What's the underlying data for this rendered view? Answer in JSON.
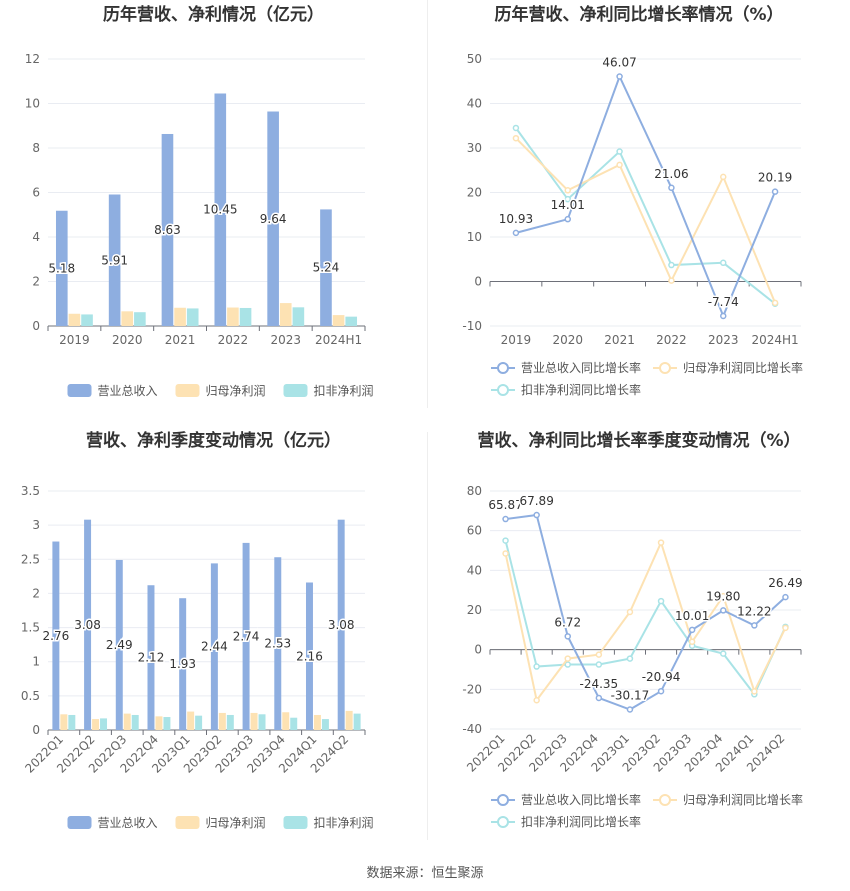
{
  "source_note": "数据来源：恒生聚源",
  "chart_data": [
    {
      "type": "bar",
      "title": "历年营收、净利情况（亿元）",
      "categories": [
        "2019",
        "2020",
        "2021",
        "2022",
        "2023",
        "2024H1"
      ],
      "ylim": [
        0,
        12
      ],
      "yticks": [
        0,
        2,
        4,
        6,
        8,
        10,
        12
      ],
      "series": [
        {
          "name": "营业总收入",
          "color": "#8eaee0",
          "values": [
            5.18,
            5.91,
            8.63,
            10.45,
            9.64,
            5.24
          ],
          "labels": [
            "5.18",
            "5.91",
            "8.63",
            "10.45",
            "9.64",
            "5.24"
          ]
        },
        {
          "name": "归母净利润",
          "color": "#fde2b3",
          "values": [
            0.55,
            0.66,
            0.82,
            0.83,
            1.03,
            0.49
          ]
        },
        {
          "name": "扣非净利润",
          "color": "#a9e3e6",
          "values": [
            0.52,
            0.62,
            0.79,
            0.81,
            0.84,
            0.42
          ]
        }
      ],
      "grid": true,
      "legend": "bottom"
    },
    {
      "type": "line",
      "title": "历年营收、净利同比增长率情况（%）",
      "categories": [
        "2019",
        "2020",
        "2021",
        "2022",
        "2023",
        "2024H1"
      ],
      "ylim": [
        -10,
        50
      ],
      "yticks": [
        -10,
        0,
        10,
        20,
        30,
        40,
        50
      ],
      "series": [
        {
          "name": "营业总收入同比增长率",
          "color": "#8eaee0",
          "values": [
            10.93,
            14.01,
            46.07,
            21.06,
            -7.74,
            20.19
          ],
          "labels": [
            "10.93",
            "14.01",
            "46.07",
            "21.06",
            "-7.74",
            "20.19"
          ]
        },
        {
          "name": "归母净利润同比增长率",
          "color": "#fde2b3",
          "values": [
            32.2,
            20.5,
            26.2,
            0.2,
            23.5,
            -4.8
          ]
        },
        {
          "name": "扣非净利润同比增长率",
          "color": "#a9e3e6",
          "values": [
            34.5,
            18.5,
            29.2,
            3.7,
            4.2,
            -5.0
          ]
        }
      ],
      "grid": true,
      "legend": "bottom"
    },
    {
      "type": "bar",
      "title": "营收、净利季度变动情况（亿元）",
      "categories": [
        "2022Q1",
        "2022Q2",
        "2022Q3",
        "2022Q4",
        "2023Q1",
        "2023Q2",
        "2023Q3",
        "2023Q4",
        "2024Q1",
        "2024Q2"
      ],
      "ylim": [
        0,
        3.5
      ],
      "yticks": [
        0,
        0.5,
        1,
        1.5,
        2,
        2.5,
        3,
        3.5
      ],
      "ytick_labels": [
        "0",
        "0.5",
        "1",
        "1.5",
        "2",
        "2.5",
        "3",
        "3.5"
      ],
      "series": [
        {
          "name": "营业总收入",
          "color": "#8eaee0",
          "values": [
            2.76,
            3.08,
            2.49,
            2.12,
            1.93,
            2.44,
            2.74,
            2.53,
            2.16,
            3.08
          ],
          "labels": [
            "2.76",
            "3.08",
            "2.49",
            "2.12",
            "1.93",
            "2.44",
            "2.74",
            "2.53",
            "2.16",
            "3.08"
          ]
        },
        {
          "name": "归母净利润",
          "color": "#fde2b3",
          "values": [
            0.23,
            0.16,
            0.24,
            0.2,
            0.27,
            0.25,
            0.25,
            0.26,
            0.22,
            0.28
          ]
        },
        {
          "name": "扣非净利润",
          "color": "#a9e3e6",
          "values": [
            0.22,
            0.17,
            0.22,
            0.19,
            0.21,
            0.22,
            0.23,
            0.18,
            0.16,
            0.24
          ]
        }
      ],
      "grid": true,
      "legend": "bottom"
    },
    {
      "type": "line",
      "title": "营收、净利同比增长率季度变动情况（%）",
      "categories": [
        "2022Q1",
        "2022Q2",
        "2022Q3",
        "2022Q4",
        "2023Q1",
        "2023Q2",
        "2023Q3",
        "2023Q4",
        "2024Q1",
        "2024Q2"
      ],
      "ylim": [
        -40,
        80
      ],
      "yticks": [
        -40,
        -20,
        0,
        20,
        40,
        60,
        80
      ],
      "series": [
        {
          "name": "营业总收入同比增长率",
          "color": "#8eaee0",
          "values": [
            65.87,
            67.89,
            6.72,
            -24.35,
            -30.17,
            -20.94,
            10.01,
            19.8,
            12.22,
            26.49
          ],
          "labels": [
            "65.87",
            "67.89",
            "6.72",
            "-24.35",
            "-30.17",
            "-20.94",
            "10.01",
            "19.80",
            "12.22",
            "26.49"
          ]
        },
        {
          "name": "归母净利润同比增长率",
          "color": "#fde2b3",
          "values": [
            48.5,
            -25.5,
            -4.5,
            -2.5,
            19.0,
            54.0,
            4.0,
            27.0,
            -21.0,
            11.0
          ]
        },
        {
          "name": "扣非净利润同比增长率",
          "color": "#a9e3e6",
          "values": [
            55.0,
            -8.5,
            -7.5,
            -7.5,
            -4.5,
            24.5,
            2.0,
            -2.0,
            -22.5,
            11.5
          ]
        }
      ],
      "grid": true,
      "legend": "bottom"
    }
  ]
}
